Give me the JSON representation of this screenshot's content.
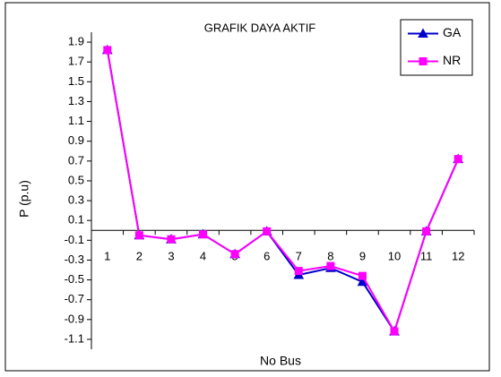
{
  "chart_data": {
    "type": "line",
    "title": "GRAFIK DAYA AKTIF",
    "xlabel": "No Bus",
    "ylabel": "P (p.u)",
    "categories": [
      "1",
      "2",
      "3",
      "4",
      "5",
      "6",
      "7",
      "8",
      "9",
      "10",
      "11",
      "12"
    ],
    "series": [
      {
        "name": "GA",
        "color": "#0000cc",
        "marker": "triangle",
        "values": [
          1.82,
          -0.05,
          -0.09,
          -0.04,
          -0.24,
          -0.01,
          -0.45,
          -0.38,
          -0.52,
          -1.02,
          -0.01,
          0.72
        ]
      },
      {
        "name": "NR",
        "color": "#ff00ff",
        "marker": "square",
        "values": [
          1.82,
          -0.05,
          -0.09,
          -0.04,
          -0.24,
          -0.01,
          -0.41,
          -0.36,
          -0.46,
          -1.02,
          -0.01,
          0.72
        ]
      }
    ],
    "ylim": [
      -1.2,
      2.0
    ],
    "yticks": [
      -1.1,
      -0.9,
      -0.7,
      -0.5,
      -0.3,
      -0.1,
      0.1,
      0.3,
      0.5,
      0.7,
      0.9,
      1.1,
      1.3,
      1.5,
      1.7,
      1.9
    ],
    "legend": "top-right"
  }
}
